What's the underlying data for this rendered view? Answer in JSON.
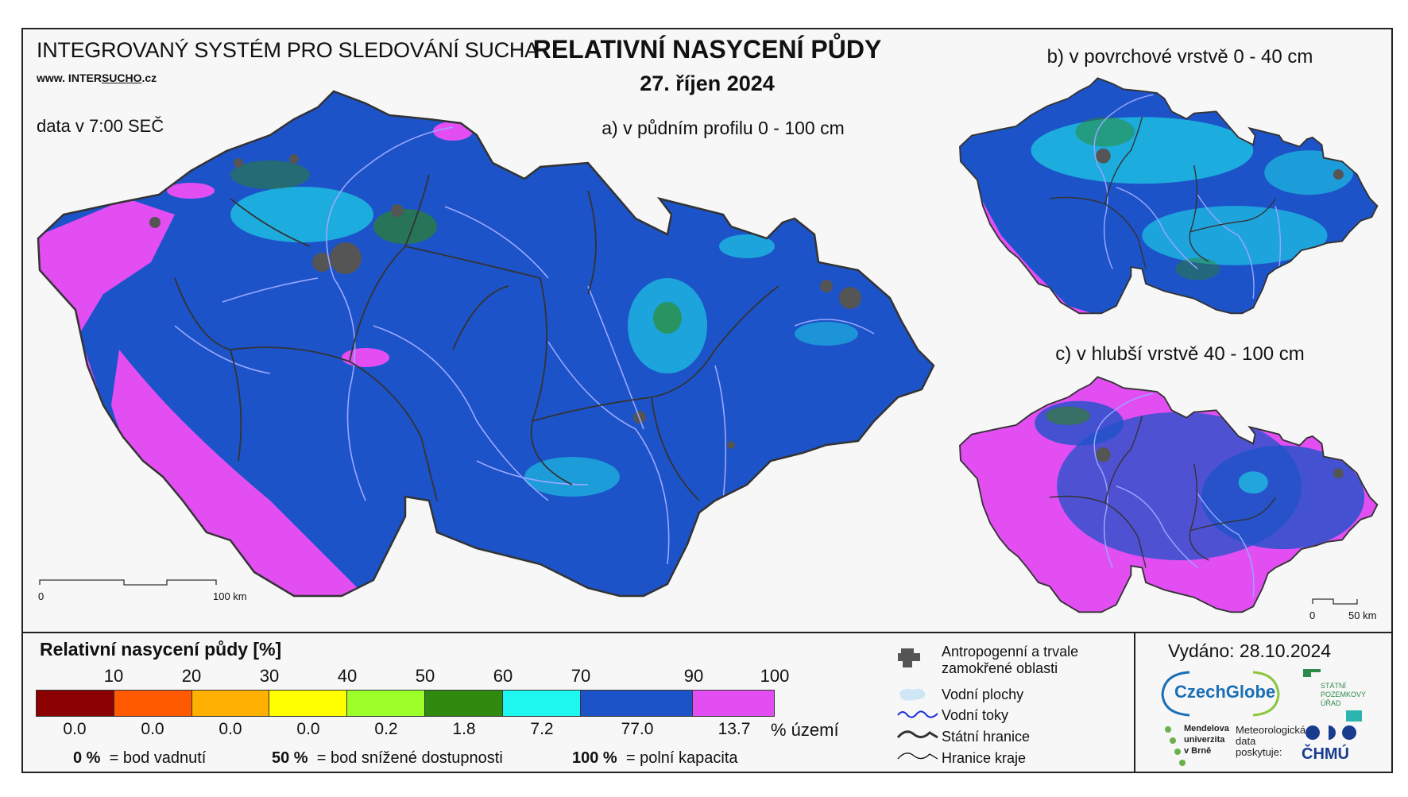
{
  "header": {
    "system_title": "INTEGROVANÝ SYSTÉM PRO SLEDOVÁNÍ SUCHA",
    "url_prefix": "www. INTER",
    "url_highlight": "SUCHO",
    "url_suffix": ".cz",
    "data_time": "data v 7:00 SEČ",
    "main_title": "RELATIVNÍ NASYCENÍ PŮDY",
    "date": "27. říjen 2024"
  },
  "maps": {
    "a_label": "a) v půdním profilu 0 - 100 cm",
    "b_label": "b) v povrchové vrstvě 0 - 40 cm",
    "c_label": "c) v hlubší vrstvě 40 - 100 cm",
    "scale_main_start": "0",
    "scale_main_end": "100 km",
    "scale_small_start": "0",
    "scale_small_end": "50 km"
  },
  "legend": {
    "title": "Relativní nasycení půdy [%]",
    "ticks": [
      "10",
      "20",
      "30",
      "40",
      "50",
      "60",
      "70",
      "90",
      "100"
    ],
    "classes": [
      {
        "color": "#8b0000",
        "pct": "0.0"
      },
      {
        "color": "#ff5a00",
        "pct": "0.0"
      },
      {
        "color": "#ffb000",
        "pct": "0.0"
      },
      {
        "color": "#ffff00",
        "pct": "0.0"
      },
      {
        "color": "#9cff2a",
        "pct": "0.2"
      },
      {
        "color": "#2f8a0f",
        "pct": "1.8"
      },
      {
        "color": "#1ef6f0",
        "pct": "7.2"
      },
      {
        "color": "#1d53c8",
        "pct": "77.0"
      },
      {
        "color": "#e24ef2",
        "pct": "13.7"
      }
    ],
    "pct_unit": "% území",
    "note1_value": "0 %",
    "note1_text": "= bod vadnutí",
    "note2_value": "50 %",
    "note2_text": "= bod snížené dostupnosti",
    "note3_value": "100 %",
    "note3_text": "= polní kapacita"
  },
  "symbols": {
    "anthropogenic": "Antropogenní a trvale zamokřené oblasti",
    "water_bodies": "Vodní plochy",
    "rivers": "Vodní toky",
    "state_border": "Státní hranice",
    "region_border": "Hranice kraje"
  },
  "footer": {
    "issued": "Vydáno: 28.10.2024",
    "czechglobe": "CzechGlobe",
    "spu": "STÁTNÍ POZEMKOVÝ ÚŘAD",
    "mendel": "Mendelova univerzita v Brně",
    "meteo": "Meteorologická data poskytuje:",
    "chmu": "ČHMÚ"
  },
  "colors": {
    "main_fill": "#1d53c8",
    "wet_fill": "#e24ef2",
    "cyan_fill": "#1ef6f0",
    "green_fill": "#2f8a0f",
    "river": "#9aa8ff",
    "urban": "#555555"
  }
}
